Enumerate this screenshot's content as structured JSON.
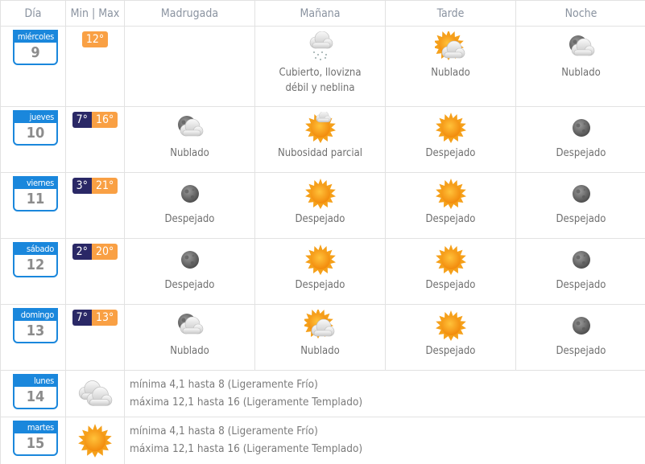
{
  "colors": {
    "calendar": "#1a87dc",
    "min_badge": "#2a2866",
    "max_badge": "#f9a044"
  },
  "header": {
    "day": "Día",
    "minmax": "Min | Max",
    "madrugada": "Madrugada",
    "manana": "Mañana",
    "tarde": "Tarde",
    "noche": "Noche"
  },
  "rows": [
    {
      "weekday": "miércoles",
      "day": "9",
      "min": null,
      "max": "12°",
      "periods": [
        null,
        {
          "icon": "rain-snow-cloud-icon",
          "label": "Cubierto, llovizna débil y neblina"
        },
        {
          "icon": "sun-cloud-icon",
          "label": "Nublado"
        },
        {
          "icon": "moon-cloud-icon",
          "label": "Nublado"
        }
      ]
    },
    {
      "weekday": "jueves",
      "day": "10",
      "min": "7°",
      "max": "16°",
      "periods": [
        {
          "icon": "moon-cloud-icon",
          "label": "Nublado"
        },
        {
          "icon": "sun-small-cloud-icon",
          "label": "Nubosidad parcial"
        },
        {
          "icon": "sun-icon",
          "label": "Despejado"
        },
        {
          "icon": "moon-icon",
          "label": "Despejado"
        }
      ]
    },
    {
      "weekday": "viernes",
      "day": "11",
      "min": "3°",
      "max": "21°",
      "periods": [
        {
          "icon": "moon-icon",
          "label": "Despejado"
        },
        {
          "icon": "sun-icon",
          "label": "Despejado"
        },
        {
          "icon": "sun-icon",
          "label": "Despejado"
        },
        {
          "icon": "moon-icon",
          "label": "Despejado"
        }
      ]
    },
    {
      "weekday": "sábado",
      "day": "12",
      "min": "2°",
      "max": "20°",
      "periods": [
        {
          "icon": "moon-icon",
          "label": "Despejado"
        },
        {
          "icon": "sun-icon",
          "label": "Despejado"
        },
        {
          "icon": "sun-icon",
          "label": "Despejado"
        },
        {
          "icon": "moon-icon",
          "label": "Despejado"
        }
      ]
    },
    {
      "weekday": "domingo",
      "day": "13",
      "min": "7°",
      "max": "13°",
      "periods": [
        {
          "icon": "moon-cloud-icon",
          "label": "Nublado"
        },
        {
          "icon": "sun-cloud-icon",
          "label": "Nublado"
        },
        {
          "icon": "sun-icon",
          "label": "Despejado"
        },
        {
          "icon": "moon-icon",
          "label": "Despejado"
        }
      ]
    }
  ],
  "extended": [
    {
      "weekday": "lunes",
      "day": "14",
      "icon": "clouds-icon",
      "min_text": "mínima 4,1 hasta 8 (Ligeramente Frío)",
      "max_text": "máxima 12,1 hasta 16 (Ligeramente Templado)"
    },
    {
      "weekday": "martes",
      "day": "15",
      "icon": "sun-icon",
      "min_text": "mínima 4,1 hasta 8 (Ligeramente Frío)",
      "max_text": "máxima 12,1 hasta 16 (Ligeramente Templado)"
    }
  ]
}
